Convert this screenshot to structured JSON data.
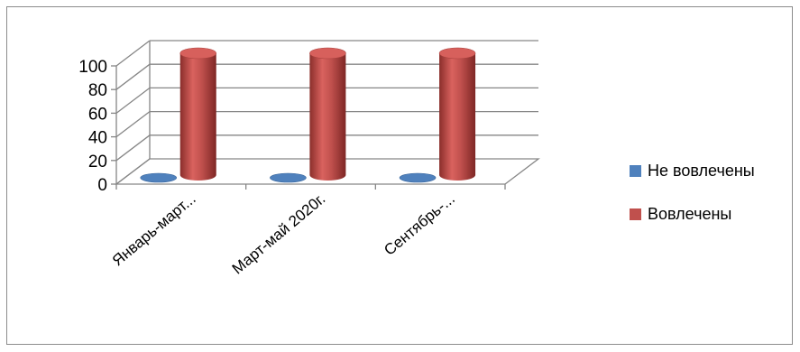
{
  "chart_data": {
    "type": "bar",
    "style": "3d-cylinder",
    "categories": [
      "Январь-март...",
      "Март-май 2020г.",
      "Сентябрь-..."
    ],
    "series": [
      {
        "name": "Не вовлечены",
        "values": [
          0,
          0,
          0
        ],
        "color": "#4f81bd"
      },
      {
        "name": "Вовлечены",
        "values": [
          100,
          100,
          100
        ],
        "color": "#c0504d"
      }
    ],
    "yticks": [
      "0",
      "20",
      "40",
      "60",
      "80",
      "100"
    ],
    "ylim": [
      0,
      100
    ],
    "grid": true,
    "legend_position": "right"
  }
}
